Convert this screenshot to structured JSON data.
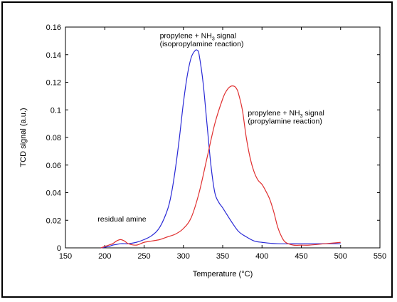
{
  "chart_data": {
    "type": "line",
    "title": "",
    "xlabel": "Temperature (°C)",
    "ylabel": "TCD signal (a.u.)",
    "xlim": [
      150,
      550
    ],
    "ylim": [
      0,
      0.16
    ],
    "x_ticks": [
      "150",
      "200",
      "250",
      "300",
      "350",
      "400",
      "450",
      "500",
      "550"
    ],
    "y_ticks": [
      "0",
      "0.02",
      "0.04",
      "0.06",
      "0.08",
      "0.1",
      "0.12",
      "0.14",
      "0.16"
    ],
    "grid": false,
    "series": [
      {
        "color": "#2a2ad6",
        "x": [
          195,
          205,
          210,
          215,
          220,
          225,
          230,
          240,
          250,
          260,
          270,
          280,
          285,
          290,
          295,
          300,
          305,
          310,
          315,
          318,
          320,
          325,
          330,
          335,
          340,
          345,
          350,
          360,
          370,
          380,
          390,
          400,
          420,
          450,
          480,
          500
        ],
        "y": [
          0.0,
          0.001,
          0.002,
          0.0025,
          0.003,
          0.003,
          0.003,
          0.004,
          0.006,
          0.009,
          0.015,
          0.028,
          0.04,
          0.058,
          0.08,
          0.105,
          0.125,
          0.138,
          0.143,
          0.143,
          0.14,
          0.12,
          0.09,
          0.06,
          0.04,
          0.033,
          0.029,
          0.02,
          0.012,
          0.008,
          0.005,
          0.004,
          0.003,
          0.003,
          0.003,
          0.003
        ]
      },
      {
        "color": "#e03030",
        "x": [
          195,
          205,
          210,
          215,
          220,
          225,
          230,
          240,
          250,
          260,
          270,
          280,
          290,
          300,
          310,
          320,
          330,
          340,
          350,
          355,
          360,
          365,
          368,
          370,
          375,
          380,
          385,
          390,
          395,
          400,
          405,
          410,
          415,
          420,
          425,
          430,
          440,
          450,
          460,
          480,
          500
        ],
        "y": [
          0.0,
          0.002,
          0.003,
          0.005,
          0.006,
          0.005,
          0.003,
          0.002,
          0.004,
          0.005,
          0.006,
          0.008,
          0.01,
          0.014,
          0.022,
          0.04,
          0.065,
          0.09,
          0.108,
          0.114,
          0.117,
          0.117,
          0.115,
          0.112,
          0.1,
          0.08,
          0.065,
          0.055,
          0.049,
          0.046,
          0.041,
          0.035,
          0.026,
          0.015,
          0.008,
          0.004,
          0.002,
          0.002,
          0.002,
          0.003,
          0.004
        ]
      }
    ],
    "annotations": [
      {
        "id": "iso-line1",
        "text": "propylene + NH3 signal",
        "x": 270,
        "y": 0.152
      },
      {
        "id": "iso-line2",
        "text": "(isopropylamine reaction)",
        "x": 270,
        "y": 0.146
      },
      {
        "id": "pro-line1",
        "text": "propylene + NH3 signal",
        "x": 382,
        "y": 0.096
      },
      {
        "id": "pro-line2",
        "text": "(propylamine reaction)",
        "x": 382,
        "y": 0.09
      },
      {
        "id": "residual",
        "text": "residual amine",
        "x": 191,
        "y": 0.019
      }
    ]
  }
}
